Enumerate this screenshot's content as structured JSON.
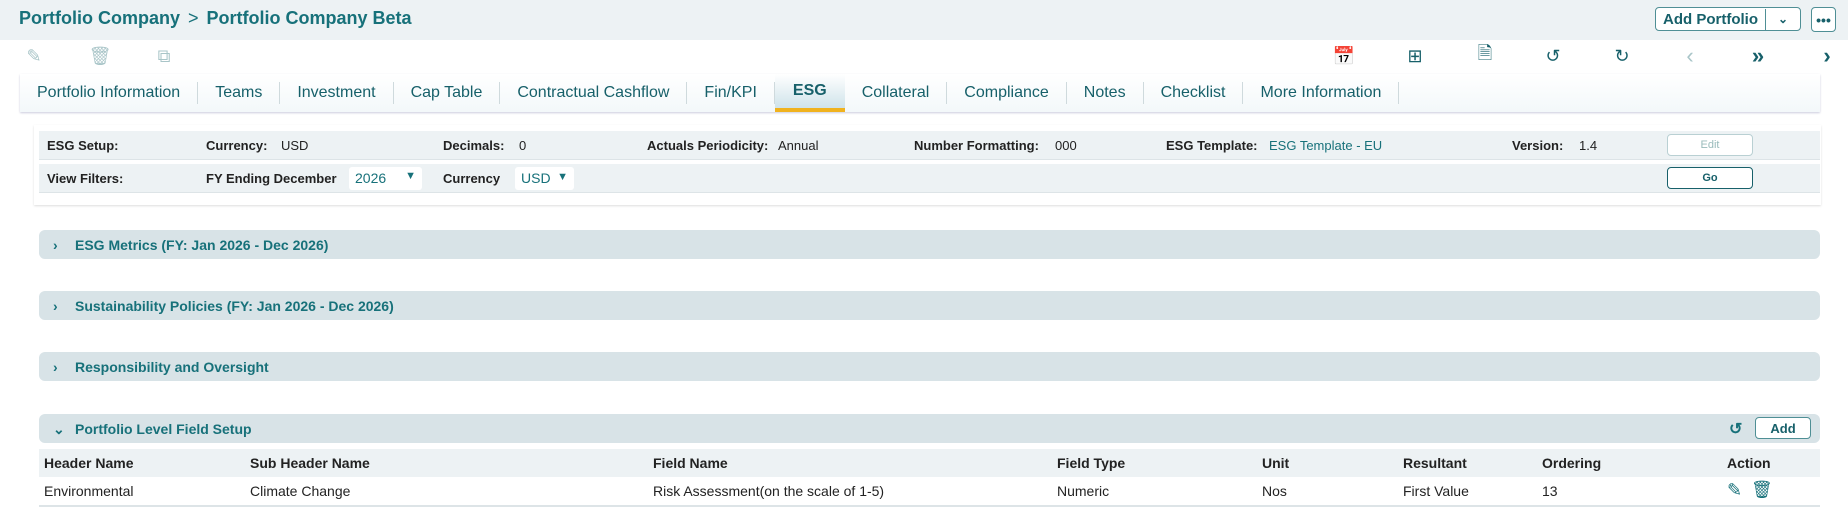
{
  "breadcrumb": {
    "root": "Portfolio Company",
    "separator": ">",
    "current": "Portfolio Company Beta"
  },
  "header": {
    "add_portfolio_label": "Add Portfolio",
    "more_label": "•••"
  },
  "tabs": [
    {
      "label": "Portfolio Information"
    },
    {
      "label": "Teams"
    },
    {
      "label": "Investment"
    },
    {
      "label": "Cap Table"
    },
    {
      "label": "Contractual Cashflow"
    },
    {
      "label": "Fin/KPI"
    },
    {
      "label": "ESG",
      "active": true
    },
    {
      "label": "Collateral"
    },
    {
      "label": "Compliance"
    },
    {
      "label": "Notes"
    },
    {
      "label": "Checklist"
    },
    {
      "label": "More Information"
    }
  ],
  "setup": {
    "title": "ESG Setup:",
    "currency_label": "Currency:",
    "currency": "USD",
    "decimals_label": "Decimals:",
    "decimals": "0",
    "periodicity_label": "Actuals Periodicity:",
    "periodicity": "Annual",
    "number_formatting_label": "Number Formatting:",
    "number_formatting": "000",
    "template_label": "ESG Template:",
    "template": "ESG Template - EU",
    "version_label": "Version:",
    "version": "1.4",
    "edit_label": "Edit"
  },
  "filters": {
    "title": "View Filters:",
    "fy_label": "FY Ending December",
    "fy_value": "2026",
    "currency_label": "Currency",
    "currency_value": "USD",
    "go_label": "Go"
  },
  "sections": [
    {
      "title": "ESG Metrics (FY: Jan 2026 - Dec 2026)",
      "expanded": false
    },
    {
      "title": "Sustainability Policies (FY: Jan 2026 - Dec 2026)",
      "expanded": false
    },
    {
      "title": "Responsibility and Oversight",
      "expanded": false
    },
    {
      "title": "Portfolio Level Field Setup",
      "expanded": true,
      "add_label": "Add"
    }
  ],
  "table": {
    "columns": [
      "Header Name",
      "Sub Header Name",
      "Field Name",
      "Field Type",
      "Unit",
      "Resultant",
      "Ordering",
      "Action"
    ],
    "rows": [
      [
        "Environmental",
        "Climate Change",
        "Risk Assessment(on the scale of 1-5)",
        "Numeric",
        "Nos",
        "First Value",
        "13"
      ]
    ]
  },
  "colors": {
    "accent": "#17717a",
    "tab_indicator": "#f0b21e",
    "section_bg": "#d8e3e7"
  }
}
